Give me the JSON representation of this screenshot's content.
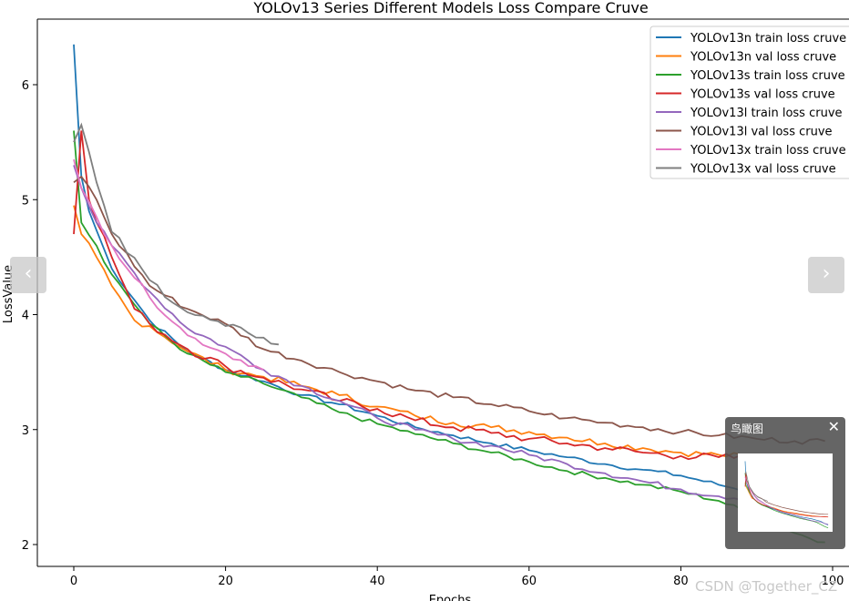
{
  "chart_data": {
    "type": "line",
    "title": "YOLOv13 Series Different Models Loss Compare Cruve",
    "xlabel": "Epochs",
    "ylabel": "LossValue",
    "xlim": [
      -5,
      101
    ],
    "ylim": [
      1.8,
      6.6
    ],
    "xticks": [
      0,
      20,
      40,
      60,
      80,
      100
    ],
    "yticks": [
      2,
      3,
      4,
      5,
      6
    ],
    "legend_position": "top-right",
    "series": [
      {
        "name": "YOLOv13n train loss cruve",
        "color": "#1f77b4",
        "points": [
          [
            0,
            6.35
          ],
          [
            1,
            5.2
          ],
          [
            2,
            4.9
          ],
          [
            5,
            4.4
          ],
          [
            10,
            3.95
          ],
          [
            15,
            3.68
          ],
          [
            20,
            3.52
          ],
          [
            25,
            3.42
          ],
          [
            30,
            3.3
          ],
          [
            35,
            3.22
          ],
          [
            40,
            3.12
          ],
          [
            45,
            3.02
          ],
          [
            50,
            2.95
          ],
          [
            55,
            2.88
          ],
          [
            60,
            2.82
          ],
          [
            65,
            2.76
          ],
          [
            70,
            2.7
          ],
          [
            75,
            2.65
          ],
          [
            80,
            2.6
          ],
          [
            85,
            2.52
          ],
          [
            90,
            2.45
          ],
          [
            95,
            2.3
          ],
          [
            99,
            2.2
          ]
        ]
      },
      {
        "name": "YOLOv13n val loss cruve",
        "color": "#ff7f0e",
        "points": [
          [
            0,
            4.95
          ],
          [
            1,
            4.7
          ],
          [
            3,
            4.5
          ],
          [
            5,
            4.25
          ],
          [
            8,
            3.95
          ],
          [
            10,
            3.9
          ],
          [
            15,
            3.68
          ],
          [
            20,
            3.52
          ],
          [
            25,
            3.46
          ],
          [
            30,
            3.38
          ],
          [
            35,
            3.3
          ],
          [
            40,
            3.2
          ],
          [
            45,
            3.12
          ],
          [
            50,
            3.06
          ],
          [
            55,
            3.02
          ],
          [
            60,
            2.98
          ],
          [
            65,
            2.93
          ],
          [
            70,
            2.88
          ],
          [
            75,
            2.84
          ],
          [
            80,
            2.8
          ],
          [
            85,
            2.78
          ],
          [
            90,
            2.76
          ],
          [
            95,
            2.74
          ],
          [
            99,
            2.72
          ]
        ]
      },
      {
        "name": "YOLOv13s train loss cruve",
        "color": "#2ca02c",
        "points": [
          [
            0,
            5.6
          ],
          [
            1,
            4.8
          ],
          [
            3,
            4.6
          ],
          [
            5,
            4.35
          ],
          [
            10,
            3.92
          ],
          [
            15,
            3.66
          ],
          [
            20,
            3.5
          ],
          [
            25,
            3.4
          ],
          [
            30,
            3.28
          ],
          [
            35,
            3.15
          ],
          [
            40,
            3.05
          ],
          [
            45,
            2.96
          ],
          [
            50,
            2.88
          ],
          [
            55,
            2.8
          ],
          [
            60,
            2.72
          ],
          [
            65,
            2.64
          ],
          [
            70,
            2.58
          ],
          [
            75,
            2.52
          ],
          [
            80,
            2.46
          ],
          [
            85,
            2.38
          ],
          [
            90,
            2.25
          ],
          [
            95,
            2.1
          ],
          [
            99,
            2.02
          ]
        ]
      },
      {
        "name": "YOLOv13s val loss cruve",
        "color": "#d62728",
        "points": [
          [
            0,
            4.7
          ],
          [
            1,
            5.6
          ],
          [
            2,
            5.0
          ],
          [
            5,
            4.5
          ],
          [
            8,
            4.05
          ],
          [
            10,
            3.92
          ],
          [
            15,
            3.7
          ],
          [
            20,
            3.55
          ],
          [
            25,
            3.45
          ],
          [
            30,
            3.35
          ],
          [
            35,
            3.25
          ],
          [
            40,
            3.18
          ],
          [
            45,
            3.08
          ],
          [
            50,
            3.02
          ],
          [
            55,
            2.97
          ],
          [
            60,
            2.92
          ],
          [
            65,
            2.88
          ],
          [
            70,
            2.84
          ],
          [
            75,
            2.8
          ],
          [
            80,
            2.77
          ],
          [
            85,
            2.76
          ],
          [
            90,
            2.75
          ],
          [
            95,
            2.74
          ],
          [
            99,
            2.73
          ]
        ]
      },
      {
        "name": "YOLOv13l train loss cruve",
        "color": "#9467bd",
        "points": [
          [
            0,
            5.3
          ],
          [
            1,
            5.1
          ],
          [
            3,
            4.8
          ],
          [
            5,
            4.6
          ],
          [
            10,
            4.2
          ],
          [
            15,
            3.88
          ],
          [
            20,
            3.72
          ],
          [
            25,
            3.52
          ],
          [
            30,
            3.38
          ],
          [
            35,
            3.25
          ],
          [
            40,
            3.1
          ],
          [
            45,
            3.0
          ],
          [
            50,
            2.92
          ],
          [
            55,
            2.86
          ],
          [
            60,
            2.78
          ],
          [
            65,
            2.7
          ],
          [
            70,
            2.62
          ],
          [
            75,
            2.55
          ],
          [
            80,
            2.48
          ],
          [
            85,
            2.42
          ],
          [
            90,
            2.4
          ],
          [
            95,
            2.3
          ],
          [
            99,
            2.24
          ]
        ]
      },
      {
        "name": "YOLOv13l val loss cruve",
        "color": "#8c564b",
        "points": [
          [
            0,
            5.15
          ],
          [
            1,
            5.2
          ],
          [
            3,
            5.0
          ],
          [
            5,
            4.7
          ],
          [
            10,
            4.25
          ],
          [
            15,
            4.05
          ],
          [
            20,
            3.92
          ],
          [
            25,
            3.7
          ],
          [
            30,
            3.6
          ],
          [
            35,
            3.5
          ],
          [
            40,
            3.42
          ],
          [
            45,
            3.34
          ],
          [
            50,
            3.28
          ],
          [
            55,
            3.22
          ],
          [
            60,
            3.16
          ],
          [
            65,
            3.1
          ],
          [
            70,
            3.06
          ],
          [
            75,
            3.02
          ],
          [
            80,
            2.98
          ],
          [
            85,
            2.95
          ],
          [
            90,
            2.92
          ],
          [
            95,
            2.9
          ],
          [
            99,
            2.9
          ]
        ]
      },
      {
        "name": "YOLOv13x train loss cruve",
        "color": "#e377c2",
        "points": [
          [
            0,
            5.35
          ],
          [
            1,
            5.1
          ],
          [
            3,
            4.85
          ],
          [
            5,
            4.6
          ],
          [
            10,
            4.15
          ],
          [
            15,
            3.82
          ],
          [
            20,
            3.66
          ],
          [
            25,
            3.52
          ]
        ]
      },
      {
        "name": "YOLOv13x val loss cruve",
        "color": "#7f7f7f",
        "points": [
          [
            0,
            5.5
          ],
          [
            1,
            5.65
          ],
          [
            3,
            5.15
          ],
          [
            5,
            4.72
          ],
          [
            10,
            4.3
          ],
          [
            15,
            4.02
          ],
          [
            20,
            3.9
          ],
          [
            23,
            3.84
          ],
          [
            25,
            3.8
          ],
          [
            27,
            3.74
          ]
        ]
      }
    ]
  },
  "ui": {
    "prev_label": "‹",
    "next_label": "›",
    "overview_title": "鸟瞰图",
    "overview_close": "✕",
    "watermark": "CSDN @Together_CZ"
  }
}
